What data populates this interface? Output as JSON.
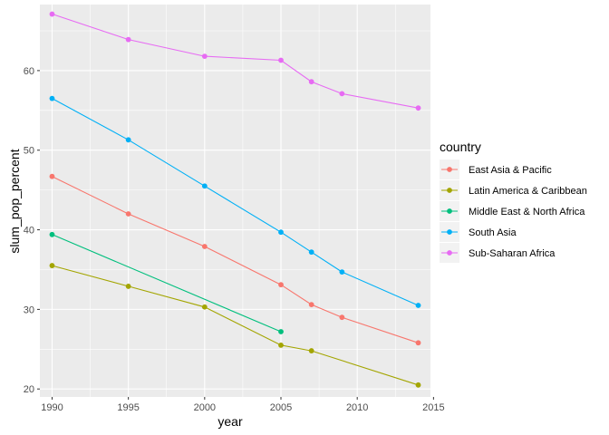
{
  "chart_data": {
    "type": "line",
    "title": "",
    "xlabel": "year",
    "ylabel": "slum_pop_percent",
    "xlim": [
      1989.2,
      2014.8
    ],
    "ylim": [
      19.0,
      68.3
    ],
    "x_ticks": [
      1990,
      1995,
      2000,
      2005,
      2010,
      2015
    ],
    "y_ticks": [
      20,
      30,
      40,
      50,
      60
    ],
    "grid": true,
    "legend": {
      "title": "country",
      "position": "right"
    },
    "series": [
      {
        "name": "East Asia & Pacific",
        "color": "#F8766D",
        "x": [
          1990,
          1995,
          2000,
          2005,
          2007,
          2009,
          2014
        ],
        "y": [
          46.7,
          42.0,
          37.9,
          33.1,
          30.6,
          29.0,
          25.8
        ]
      },
      {
        "name": "Latin America & Caribbean",
        "color": "#A3A500",
        "x": [
          1990,
          1995,
          2000,
          2005,
          2007,
          2014
        ],
        "y": [
          35.5,
          32.9,
          30.3,
          25.5,
          24.8,
          20.5
        ]
      },
      {
        "name": "Middle East & North Africa",
        "color": "#00BF7D",
        "x": [
          1990,
          2005
        ],
        "y": [
          39.4,
          27.2
        ]
      },
      {
        "name": "South Asia",
        "color": "#00B0F6",
        "x": [
          1990,
          1995,
          2000,
          2005,
          2007,
          2009,
          2014
        ],
        "y": [
          56.5,
          51.3,
          45.5,
          39.7,
          37.2,
          34.7,
          30.5
        ]
      },
      {
        "name": "Sub-Saharan Africa",
        "color": "#E76BF3",
        "x": [
          1990,
          1995,
          2000,
          2005,
          2007,
          2009,
          2014
        ],
        "y": [
          67.1,
          63.9,
          61.8,
          61.3,
          58.6,
          57.1,
          55.3
        ]
      }
    ]
  }
}
